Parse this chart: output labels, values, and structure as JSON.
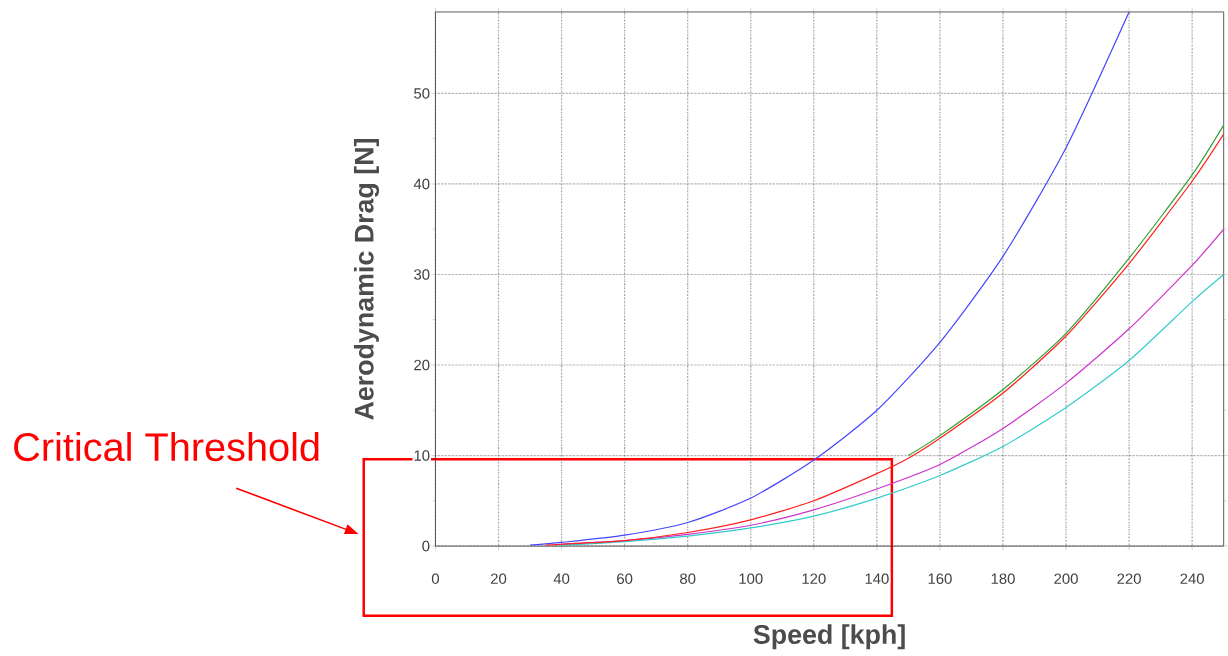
{
  "chart_data": {
    "type": "line",
    "xlabel": "Speed [kph]",
    "ylabel": "Aerodynamic Drag [N]",
    "annotations": [
      "Critical Threshold"
    ],
    "xlim": [
      0,
      250
    ],
    "ylim": [
      0,
      59
    ],
    "xticks": [
      0,
      20,
      40,
      60,
      80,
      100,
      120,
      140,
      160,
      180,
      200,
      220,
      240
    ],
    "yticks": [
      0,
      10,
      20,
      30,
      40,
      50
    ],
    "grid": true,
    "line_style": "solid",
    "marker": "none",
    "series": [
      {
        "color": "#4646ff",
        "x": [
          30,
          40,
          60,
          80,
          100,
          120,
          140,
          160,
          180,
          200,
          220
        ],
        "values": [
          0.1,
          0.4,
          1.2,
          2.6,
          5.3,
          9.5,
          15,
          22.5,
          32,
          44,
          59
        ]
      },
      {
        "color": "#30a030",
        "x": [
          150,
          160,
          180,
          200,
          220,
          240,
          250
        ],
        "values": [
          10,
          12.2,
          17.3,
          23.5,
          31.8,
          41,
          46.5
        ]
      },
      {
        "color": "#cc33cc",
        "x": [
          38,
          40,
          60,
          80,
          100,
          120,
          140,
          160,
          180,
          200,
          220,
          240,
          250
        ],
        "values": [
          0.1,
          0.2,
          0.6,
          1.3,
          2.3,
          4,
          6.3,
          9,
          13,
          18,
          24,
          31,
          35
        ]
      },
      {
        "color": "#33cccc",
        "x": [
          40,
          60,
          80,
          100,
          120,
          140,
          160,
          180,
          200,
          220,
          240,
          250
        ],
        "values": [
          0.1,
          0.5,
          1.1,
          2,
          3.3,
          5.3,
          7.8,
          11,
          15.3,
          20.5,
          27,
          30
        ]
      },
      {
        "color": "#ff2020",
        "x": [
          35,
          40,
          60,
          80,
          100,
          120,
          140,
          150,
          160,
          180,
          200,
          220,
          240,
          250
        ],
        "values": [
          0.1,
          0.2,
          0.6,
          1.5,
          2.9,
          5,
          8,
          9.7,
          11.9,
          16.9,
          23.2,
          31.2,
          40.3,
          45.5
        ]
      }
    ]
  }
}
